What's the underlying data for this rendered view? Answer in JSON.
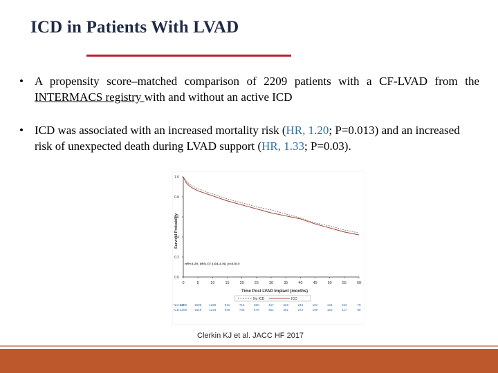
{
  "slide": {
    "title": "ICD in Patients With LVAD",
    "bullets": [
      {
        "marker": "•",
        "parts": [
          "A propensity score–matched comparison of 2209 patients with a CF-LVAD from the ",
          "INTERMACS registry ",
          "with and without an active ICD"
        ]
      },
      {
        "marker": "•",
        "parts": [
          "ICD was associated with an increased mortality risk (",
          "HR, 1.20",
          "; P=0.013) and an increased risk of unexpected death during LVAD support (",
          "HR, 1.33",
          "; P=0.03)."
        ]
      }
    ],
    "citation": "Clerkin KJ et al. JACC HF 2017",
    "colors": {
      "title": "#1f2b46",
      "rule": "#b5212c",
      "footer": "#bd582c",
      "hr_text": "#2f6e9e"
    }
  },
  "chart_data": {
    "type": "line",
    "ylabel": "Survival Probability",
    "xlabel": "Time Post LVAD Implant (months)",
    "ylim": [
      0,
      1
    ],
    "xlim": [
      0,
      60
    ],
    "y_ticks": [
      "0.0",
      "0.2",
      "0.4",
      "0.6",
      "0.8",
      "1.0"
    ],
    "x_ticks": [
      "0",
      "5",
      "10",
      "15",
      "20",
      "25",
      "30",
      "35",
      "40",
      "45",
      "50",
      "55",
      "60"
    ],
    "annotation": "HR=1.20, 95% CI 1.04-1.39, p=0.013",
    "legend_position": "bottom",
    "series": [
      {
        "name": "No ICD",
        "style": "dashed",
        "color": "#777777",
        "x": [
          0,
          1,
          2,
          3,
          5,
          10,
          15,
          20,
          25,
          30,
          35,
          40,
          45,
          50,
          55,
          60
        ],
        "values": [
          1.0,
          0.96,
          0.93,
          0.91,
          0.88,
          0.83,
          0.78,
          0.74,
          0.7,
          0.67,
          0.63,
          0.59,
          0.54,
          0.51,
          0.47,
          0.44
        ]
      },
      {
        "name": "ICD",
        "style": "solid",
        "color": "#a64f45",
        "x": [
          0,
          1,
          2,
          3,
          5,
          10,
          15,
          20,
          25,
          30,
          35,
          40,
          45,
          50,
          55,
          60
        ],
        "values": [
          1.0,
          0.94,
          0.91,
          0.89,
          0.86,
          0.81,
          0.76,
          0.72,
          0.68,
          0.64,
          0.61,
          0.58,
          0.53,
          0.49,
          0.45,
          0.42
        ]
      }
    ],
    "risk_table": {
      "rows": [
        {
          "label": "No ICD",
          "values": [
            "2209",
            "1598",
            "1269",
            "941",
            "716",
            "550",
            "417",
            "328",
            "245",
            "181",
            "144",
            "102",
            "78"
          ]
        },
        {
          "label": "ICD",
          "values": [
            "2209",
            "1549",
            "1233",
            "949",
            "746",
            "579",
            "451",
            "351",
            "272",
            "199",
            "152",
            "117",
            "88"
          ]
        }
      ]
    }
  }
}
